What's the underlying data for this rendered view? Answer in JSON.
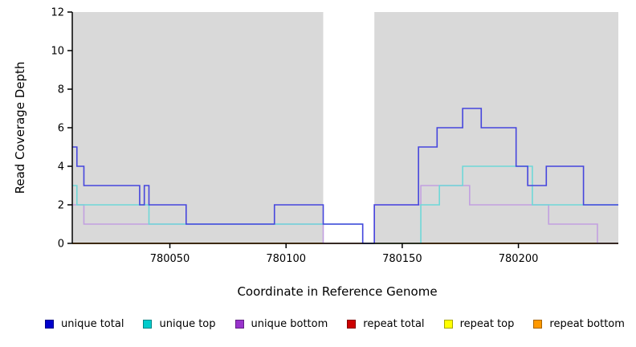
{
  "chart_data": {
    "type": "line",
    "title": "",
    "xlabel": "Coordinate in Reference Genome",
    "ylabel": "Read Coverage Depth",
    "xlim": [
      780008,
      780243
    ],
    "ylim": [
      0,
      12
    ],
    "xticks": [
      780050,
      780100,
      780150,
      780200
    ],
    "yticks": [
      0,
      2,
      4,
      6,
      8,
      10,
      12
    ],
    "grid": false,
    "legend_position": "bottom",
    "band_color": "#d9d9d9",
    "bands": [
      {
        "x0": 780008,
        "x1": 780116
      },
      {
        "x0": 780138,
        "x1": 780243
      }
    ],
    "series": [
      {
        "name": "repeat total",
        "color": "#cc0000",
        "line_color": "#cc0000",
        "points": [
          [
            780008,
            0
          ]
        ]
      },
      {
        "name": "repeat top",
        "color": "#ffff00",
        "line_color": "#eeee00",
        "points": [
          [
            780008,
            0
          ]
        ]
      },
      {
        "name": "repeat bottom",
        "color": "#ff9900",
        "line_color": "#ff9933",
        "points": [
          [
            780008,
            0
          ]
        ]
      },
      {
        "name": "unique bottom",
        "color": "#9933cc",
        "line_color": "#c2a0e0",
        "points": [
          [
            780008,
            2
          ],
          [
            780013,
            1
          ],
          [
            780116,
            0
          ],
          [
            780138,
            2
          ],
          [
            780158,
            3
          ],
          [
            780179,
            2
          ],
          [
            780213,
            1
          ],
          [
            780234,
            0
          ]
        ]
      },
      {
        "name": "unique top",
        "color": "#00cccc",
        "line_color": "#6fd8d8",
        "points": [
          [
            780008,
            3
          ],
          [
            780010,
            2
          ],
          [
            780041,
            1
          ],
          [
            780133,
            0
          ],
          [
            780158,
            2
          ],
          [
            780166,
            3
          ],
          [
            780176,
            4
          ],
          [
            780206,
            2
          ]
        ]
      },
      {
        "name": "unique total",
        "color": "#0000cc",
        "line_color": "#4646dd",
        "points": [
          [
            780008,
            5
          ],
          [
            780010,
            4
          ],
          [
            780013,
            3
          ],
          [
            780037,
            2
          ],
          [
            780039,
            3
          ],
          [
            780041,
            2
          ],
          [
            780057,
            1
          ],
          [
            780095,
            2
          ],
          [
            780116,
            1
          ],
          [
            780133,
            0
          ],
          [
            780138,
            2
          ],
          [
            780157,
            5
          ],
          [
            780165,
            6
          ],
          [
            780176,
            7
          ],
          [
            780184,
            6
          ],
          [
            780199,
            4
          ],
          [
            780204,
            3
          ],
          [
            780212,
            4
          ],
          [
            780228,
            2
          ]
        ]
      }
    ]
  },
  "legend": {
    "items": [
      {
        "label": "unique total",
        "color": "#0000cc"
      },
      {
        "label": "unique top",
        "color": "#00cccc"
      },
      {
        "label": "unique bottom",
        "color": "#9933cc"
      },
      {
        "label": "repeat total",
        "color": "#cc0000"
      },
      {
        "label": "repeat top",
        "color": "#ffff00"
      },
      {
        "label": "repeat bottom",
        "color": "#ff9900"
      }
    ]
  }
}
